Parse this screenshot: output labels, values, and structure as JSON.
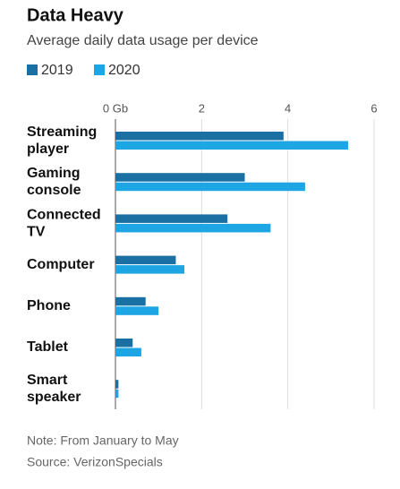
{
  "chart_data": {
    "type": "bar",
    "orientation": "horizontal",
    "title": "Data Heavy",
    "subtitle": "Average daily data usage per device",
    "categories": [
      "Streaming player",
      "Gaming console",
      "Connected TV",
      "Computer",
      "Phone",
      "Tablet",
      "Smart speaker"
    ],
    "series": [
      {
        "name": "2019",
        "color": "#1a6fa3",
        "values": [
          3.9,
          3.0,
          2.6,
          1.4,
          0.7,
          0.4,
          0.07
        ]
      },
      {
        "name": "2020",
        "color": "#1ea5e3",
        "values": [
          5.4,
          4.4,
          3.6,
          1.6,
          1.0,
          0.6,
          0.07
        ]
      }
    ],
    "xlim": [
      0,
      6
    ],
    "xticks": [
      {
        "value": 0,
        "label": "0 Gb"
      },
      2,
      4,
      6
    ],
    "grid": true,
    "note": "Note: From January to May",
    "source": "Source: VerizonSpecials"
  }
}
